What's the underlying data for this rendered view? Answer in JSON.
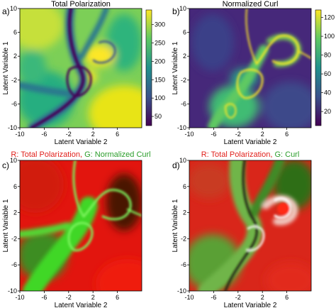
{
  "chart_data": [
    {
      "type": "heatmap",
      "panel_label": "a)",
      "title": "Total Polarization",
      "xlabel": "Latent Variable 2",
      "ylabel": "Latent Variable 1",
      "xticks": [
        "-10",
        "-6",
        "-2",
        "2",
        "6"
      ],
      "yticks": [
        "10",
        "6",
        "2",
        "-2",
        "-6",
        "-10"
      ],
      "xlim": [
        -10,
        10
      ],
      "ylim": [
        -10,
        10
      ],
      "colormap": "viridis",
      "colorbar": {
        "ticks": [
          "300",
          "250",
          "200",
          "150",
          "100",
          "50"
        ],
        "range": [
          25,
          340
        ]
      }
    },
    {
      "type": "heatmap",
      "panel_label": "b)",
      "title": "Normalized Curl",
      "xlabel": "Latent Variable 2",
      "ylabel": "Latent Variable 1",
      "xticks": [
        "-10",
        "-6",
        "-2",
        "2",
        "6"
      ],
      "yticks": [
        "10",
        "6",
        "2",
        "-2",
        "-6",
        "-10"
      ],
      "xlim": [
        -10,
        10
      ],
      "ylim": [
        -10,
        10
      ],
      "colormap": "viridis",
      "colorbar": {
        "ticks": [
          "120",
          "100",
          "80",
          "60",
          "40",
          "20"
        ],
        "range": [
          5,
          128
        ]
      }
    },
    {
      "type": "heatmap",
      "panel_label": "c)",
      "title_parts": [
        {
          "text": "R: Total Polarization, ",
          "color": "#e0201b"
        },
        {
          "text": "G: Normalized Curl",
          "color": "#2a9d2a"
        }
      ],
      "xlabel": "Latent Variable 2",
      "ylabel": "Latent Variable 1",
      "xticks": [
        "-10",
        "-6",
        "-2",
        "2",
        "6"
      ],
      "yticks": [
        "10",
        "6",
        "2",
        "-2",
        "-6",
        "-10"
      ],
      "xlim": [
        -10,
        10
      ],
      "ylim": [
        -10,
        10
      ],
      "colormap": "red-green composite"
    },
    {
      "type": "heatmap",
      "panel_label": "d)",
      "title_parts": [
        {
          "text": "R: Total Polarization, ",
          "color": "#e0201b"
        },
        {
          "text": "G: Curl",
          "color": "#2a9d2a"
        }
      ],
      "xlabel": "Latent Variable 2",
      "ylabel": "Latent Variable 1",
      "xticks": [
        "-10",
        "-6",
        "-2",
        "2",
        "6"
      ],
      "yticks": [
        "10",
        "6",
        "2",
        "-2",
        "-6",
        "-10"
      ],
      "xlim": [
        -10,
        10
      ],
      "ylim": [
        -10,
        10
      ],
      "colormap": "red-green composite"
    }
  ]
}
